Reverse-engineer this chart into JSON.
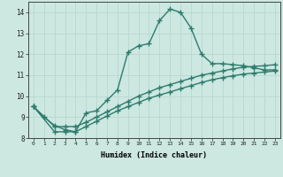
{
  "xlabel": "Humidex (Indice chaleur)",
  "bg_color": "#cce8e0",
  "line_color": "#2e7b6e",
  "grid_color": "#b8d8d0",
  "xlim": [
    -0.5,
    23.5
  ],
  "ylim": [
    8,
    14.5
  ],
  "xticks": [
    0,
    1,
    2,
    3,
    4,
    5,
    6,
    7,
    8,
    9,
    10,
    11,
    12,
    13,
    14,
    15,
    16,
    17,
    18,
    19,
    20,
    21,
    22,
    23
  ],
  "yticks": [
    8,
    9,
    10,
    11,
    12,
    13,
    14
  ],
  "series1_x": [
    0,
    1,
    2,
    3,
    4,
    5,
    6,
    7,
    8,
    9,
    10,
    11,
    12,
    13,
    14,
    15,
    16,
    17,
    18,
    19,
    20,
    21,
    22,
    23
  ],
  "series1_y": [
    9.5,
    9.0,
    8.6,
    8.4,
    8.3,
    9.2,
    9.3,
    9.8,
    10.3,
    12.1,
    12.4,
    12.5,
    13.6,
    14.15,
    14.0,
    13.25,
    12.0,
    11.55,
    11.55,
    11.5,
    11.45,
    11.35,
    11.25,
    11.25
  ],
  "series2_x": [
    0,
    2,
    3,
    4,
    5,
    6,
    7,
    8,
    9,
    10,
    11,
    12,
    13,
    14,
    15,
    16,
    17,
    18,
    19,
    20,
    21,
    22,
    23
  ],
  "series2_y": [
    9.5,
    8.55,
    8.55,
    8.55,
    8.75,
    9.0,
    9.25,
    9.5,
    9.75,
    10.0,
    10.2,
    10.4,
    10.55,
    10.7,
    10.85,
    11.0,
    11.1,
    11.2,
    11.3,
    11.38,
    11.42,
    11.45,
    11.5
  ],
  "series3_x": [
    0,
    2,
    3,
    4,
    5,
    6,
    7,
    8,
    9,
    10,
    11,
    12,
    13,
    14,
    15,
    16,
    17,
    18,
    19,
    20,
    21,
    22,
    23
  ],
  "series3_y": [
    9.5,
    8.3,
    8.3,
    8.3,
    8.55,
    8.8,
    9.05,
    9.3,
    9.5,
    9.7,
    9.9,
    10.05,
    10.2,
    10.35,
    10.5,
    10.65,
    10.78,
    10.88,
    10.97,
    11.05,
    11.1,
    11.15,
    11.2
  ],
  "marker": "+",
  "marker_size": 4,
  "linewidth": 1.0
}
